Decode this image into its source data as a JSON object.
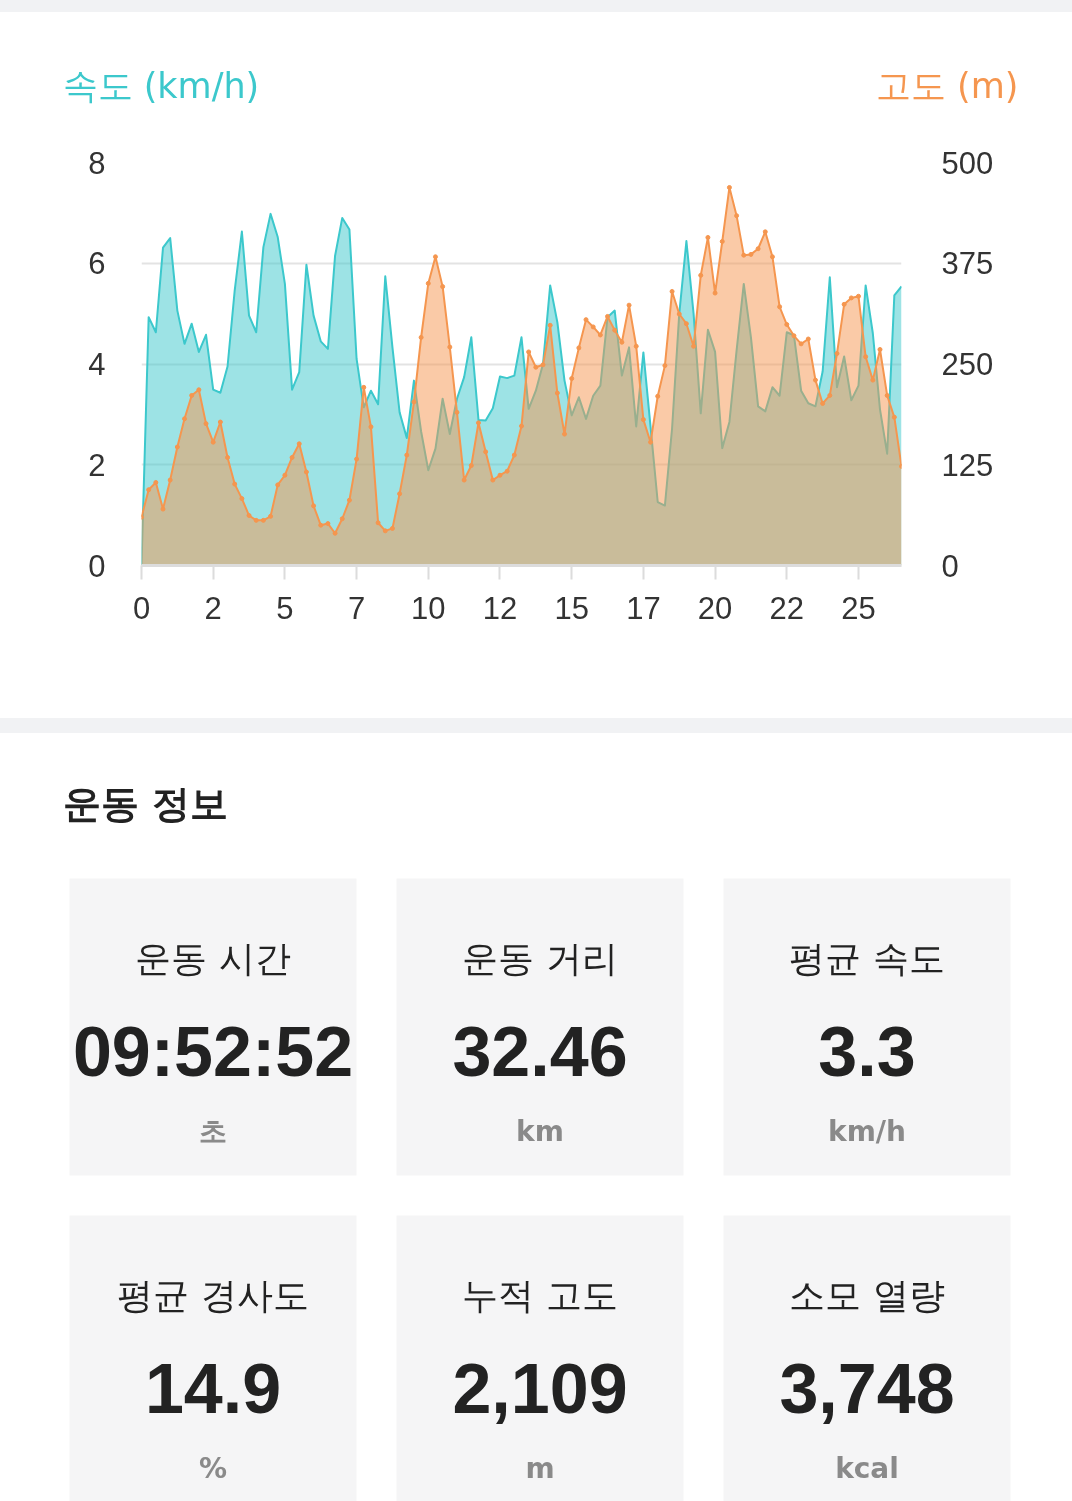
{
  "chart_data": [
    {
      "type": "area",
      "ylabel": "속도 (km/h)",
      "y2label": "고도 (m)",
      "x": [
        0,
        0.25,
        0.5,
        0.75,
        1,
        1.25,
        1.5,
        1.75,
        2,
        2.25,
        2.5,
        2.75,
        3,
        3.25,
        3.5,
        3.75,
        4,
        4.25,
        4.5,
        4.75,
        5,
        5.25,
        5.5,
        5.75,
        6,
        6.25,
        6.5,
        6.75,
        7,
        7.25,
        7.5,
        7.75,
        8,
        8.25,
        8.5,
        8.75,
        9,
        9.25,
        9.5,
        9.75,
        10,
        10.25,
        10.5,
        10.75,
        11,
        11.25,
        11.5,
        11.75,
        12,
        12.25,
        12.5,
        12.75,
        13,
        13.25,
        13.5,
        13.75,
        14,
        14.25,
        14.5,
        14.75,
        15,
        15.25,
        15.5,
        15.75,
        16,
        16.25,
        16.5,
        16.75,
        17,
        17.25,
        17.5,
        17.75,
        18,
        18.25,
        18.5,
        18.75,
        19,
        19.25,
        19.5,
        19.75,
        20,
        20.25,
        20.5,
        20.75,
        21,
        21.25,
        21.5,
        21.75,
        22,
        22.25,
        22.5,
        22.75,
        23,
        23.25,
        23.5,
        23.75,
        24,
        24.25,
        24.5,
        24.75,
        25,
        25.25,
        25.5,
        25.75,
        26,
        26.25,
        26.5
      ],
      "xlim": [
        0,
        26.5
      ],
      "xticks": [
        0,
        {
          "value": 2.5,
          "label": "2"
        },
        5,
        {
          "value": 7.5,
          "label": "7"
        },
        10,
        {
          "value": 12.5,
          "label": "12"
        },
        15,
        {
          "value": 17.5,
          "label": "17"
        },
        20,
        {
          "value": 22.5,
          "label": "22"
        },
        25
      ],
      "ylim": [
        0,
        8
      ],
      "yticks": [
        0,
        2,
        4,
        6,
        8
      ],
      "y2lim": [
        0,
        500
      ],
      "y2ticks": [
        0,
        125,
        250,
        375,
        500
      ],
      "grid": "y",
      "series": [
        {
          "color": "#3cc8cc",
          "values": [
            0,
            4.93,
            4.63,
            6.31,
            6.5,
            5.06,
            4.4,
            4.8,
            4.24,
            4.58,
            3.49,
            3.43,
            3.95,
            5.46,
            6.63,
            4.96,
            4.63,
            6.32,
            6.98,
            6.52,
            5.59,
            3.49,
            3.84,
            5.97,
            4.96,
            4.45,
            4.3,
            6.15,
            6.9,
            6.67,
            4.1,
            3.14,
            3.47,
            3.2,
            5.74,
            4.33,
            3.04,
            2.53,
            3.67,
            2.66,
            1.89,
            2.32,
            3.31,
            2.61,
            3.31,
            3.74,
            4.53,
            2.89,
            2.88,
            3.12,
            3.75,
            3.72,
            3.77,
            4.53,
            3.11,
            3.47,
            4.0,
            5.56,
            4.83,
            3.67,
            2.98,
            3.34,
            2.91,
            3.37,
            3.57,
            4.93,
            5.06,
            3.77,
            4.33,
            2.76,
            4.23,
            2.75,
            1.26,
            1.19,
            2.72,
            4.99,
            6.44,
            5.0,
            3.02,
            4.68,
            4.24,
            2.33,
            2.85,
            4.27,
            5.59,
            4.53,
            3.16,
            3.06,
            3.54,
            3.37,
            4.63,
            4.57,
            3.47,
            3.22,
            3.16,
            3.85,
            5.72,
            3.54,
            4.15,
            3.28,
            3.57,
            5.56,
            4.61,
            3.1,
            2.22,
            5.36,
            5.54
          ]
        },
        {
          "color": "#f5964f",
          "axis": "y2",
          "marker": "circle",
          "values": [
            60,
            94,
            103,
            70,
            106,
            147,
            182,
            211,
            218,
            176,
            153,
            178,
            134,
            101,
            83,
            62,
            56,
            56,
            61,
            100,
            112,
            134,
            151,
            116,
            74,
            50,
            52,
            40,
            58,
            81,
            132,
            221,
            172,
            53,
            43,
            46,
            89,
            137,
            203,
            283,
            350,
            383,
            346,
            271,
            190,
            106,
            124,
            177,
            141,
            106,
            112,
            117,
            137,
            173,
            265,
            246,
            249,
            298,
            214,
            163,
            232,
            270,
            305,
            296,
            286,
            309,
            292,
            277,
            323,
            272,
            181,
            153,
            210,
            248,
            340,
            312,
            300,
            272,
            360,
            407,
            338,
            402,
            469,
            434,
            385,
            386,
            393,
            414,
            383,
            321,
            299,
            285,
            275,
            281,
            230,
            201,
            211,
            263,
            324,
            332,
            334,
            259,
            230,
            268,
            211,
            184,
            123
          ]
        }
      ]
    },
    {
      "type": "other",
      "title": "운동 정보",
      "categories": [
        "운동 시간",
        "운동 거리",
        "평균 속도",
        "평균 경사도",
        "누적 고도",
        "소모 열량"
      ],
      "value_labels": [
        "09:52:52",
        "32.46",
        "3.3",
        "14.9",
        "2,109",
        "3,748"
      ],
      "annotations": [
        "초",
        "km",
        "km/h",
        "%",
        "m",
        "kcal"
      ]
    }
  ]
}
